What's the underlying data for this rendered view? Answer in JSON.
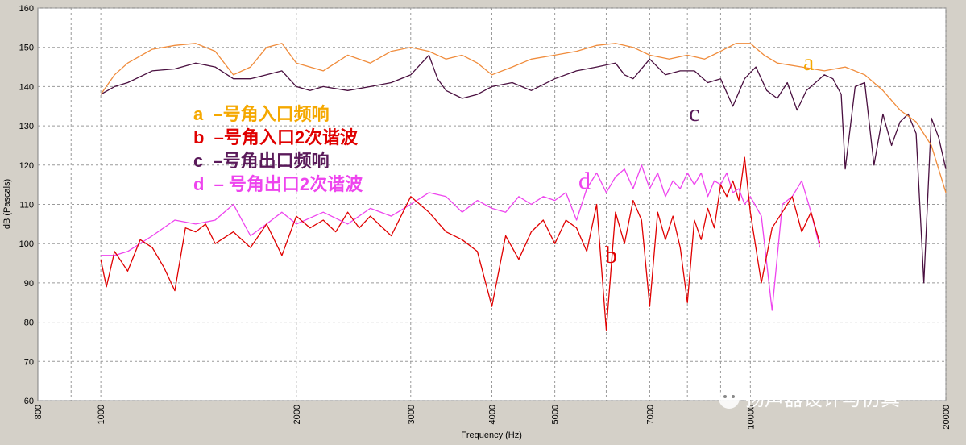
{
  "chart_data": {
    "type": "line",
    "title": "",
    "xlabel": "Frequency (Hz)",
    "ylabel": "dB (Pascals)",
    "xscale": "log",
    "xlim": [
      800,
      20000
    ],
    "ylim": [
      60,
      160
    ],
    "grid": true,
    "x_ticks": [
      "800",
      "1000",
      "2000",
      "3000",
      "4000",
      "5000",
      "7000",
      "10000",
      "20000"
    ],
    "y_ticks": [
      "60",
      "70",
      "80",
      "90",
      "100",
      "110",
      "120",
      "130",
      "140",
      "150",
      "160"
    ],
    "legend": {
      "placement": "top-left",
      "entries": [
        {
          "letter": "a",
          "text": "–号角入口频响",
          "color": "#f5a800"
        },
        {
          "letter": "b",
          "text": "–号角入口2次谐波",
          "color": "#e00000"
        },
        {
          "letter": "c",
          "text": "–号角出口频响",
          "color": "#5a1a5a"
        },
        {
          "letter": "d",
          "text": "– 号角出口2次谐波",
          "color": "#ee44ee"
        }
      ]
    },
    "series": [
      {
        "name": "a",
        "color": "#f08c3c",
        "x": [
          1000,
          1050,
          1100,
          1200,
          1300,
          1400,
          1500,
          1600,
          1700,
          1800,
          1900,
          2000,
          2200,
          2400,
          2600,
          2800,
          3000,
          3200,
          3400,
          3600,
          3800,
          4000,
          4300,
          4600,
          5000,
          5400,
          5800,
          6200,
          6600,
          7000,
          7500,
          8000,
          8500,
          9000,
          9500,
          10000,
          10500,
          11000,
          12000,
          13000,
          14000,
          15000,
          16000,
          17000,
          18000,
          19000,
          20000
        ],
        "y": [
          138,
          143,
          146,
          149.5,
          150.5,
          151,
          149,
          143,
          145,
          150,
          151,
          146,
          144,
          148,
          146,
          149,
          150,
          149,
          147,
          148,
          146,
          143,
          145,
          147,
          148,
          149,
          150.5,
          151,
          150,
          148,
          147,
          148,
          147,
          149,
          151,
          151,
          148,
          146,
          145,
          144,
          145,
          143,
          139,
          134,
          131,
          125,
          113
        ]
      },
      {
        "name": "b",
        "color": "#e00000",
        "x": [
          1000,
          1020,
          1050,
          1100,
          1150,
          1200,
          1250,
          1300,
          1350,
          1400,
          1450,
          1500,
          1600,
          1700,
          1800,
          1900,
          2000,
          2100,
          2200,
          2300,
          2400,
          2500,
          2600,
          2800,
          3000,
          3200,
          3400,
          3600,
          3800,
          4000,
          4200,
          4400,
          4600,
          4800,
          5000,
          5200,
          5400,
          5600,
          5800,
          6000,
          6200,
          6400,
          6600,
          6800,
          7000,
          7200,
          7400,
          7600,
          7800,
          8000,
          8200,
          8400,
          8600,
          8800,
          9000,
          9200,
          9400,
          9600,
          9800,
          10000,
          10400,
          10800,
          11200,
          11600,
          12000,
          12400,
          12800
        ],
        "y": [
          96,
          89,
          98,
          93,
          101,
          99,
          94,
          88,
          104,
          103,
          105,
          100,
          103,
          99,
          105,
          97,
          107,
          104,
          106,
          103,
          108,
          104,
          107,
          102,
          112,
          108,
          103,
          101,
          98,
          84,
          102,
          96,
          103,
          106,
          100,
          106,
          104,
          98,
          110,
          78,
          108,
          100,
          111,
          106,
          84,
          108,
          101,
          107,
          99,
          85,
          106,
          101,
          109,
          104,
          115,
          112,
          116,
          111,
          122,
          108,
          90,
          104,
          108,
          112,
          103,
          108,
          100
        ]
      },
      {
        "name": "c",
        "color": "#4a1040",
        "x": [
          1000,
          1050,
          1100,
          1200,
          1300,
          1400,
          1500,
          1600,
          1700,
          1800,
          1900,
          2000,
          2100,
          2200,
          2400,
          2600,
          2800,
          3000,
          3200,
          3300,
          3400,
          3600,
          3800,
          4000,
          4300,
          4600,
          5000,
          5400,
          5800,
          6200,
          6400,
          6600,
          7000,
          7400,
          7800,
          8200,
          8600,
          9000,
          9400,
          9800,
          10200,
          10600,
          11000,
          11400,
          11800,
          12200,
          12600,
          13000,
          13400,
          13800,
          14000,
          14500,
          15000,
          15500,
          16000,
          16500,
          17000,
          17500,
          18000,
          18500,
          19000,
          19500,
          20000
        ],
        "y": [
          138,
          140,
          141,
          144,
          144.5,
          146,
          145,
          142,
          142,
          143,
          144,
          140,
          139,
          140,
          139,
          140,
          141,
          143,
          148,
          142,
          139,
          137,
          138,
          140,
          141,
          139,
          142,
          144,
          145,
          146,
          143,
          142,
          147,
          143,
          144,
          144,
          141,
          142,
          135,
          142,
          145,
          139,
          137,
          141,
          134,
          139,
          141,
          143,
          142,
          138,
          119,
          140,
          141,
          120,
          133,
          125,
          131,
          133,
          128,
          90,
          132,
          127,
          119
        ]
      },
      {
        "name": "d",
        "color": "#ee44ee",
        "x": [
          1000,
          1050,
          1100,
          1200,
          1300,
          1400,
          1500,
          1600,
          1700,
          1800,
          1900,
          2000,
          2200,
          2400,
          2600,
          2800,
          3000,
          3200,
          3400,
          3600,
          3800,
          4000,
          4200,
          4400,
          4600,
          4800,
          5000,
          5200,
          5400,
          5600,
          5800,
          6000,
          6200,
          6400,
          6600,
          6800,
          7000,
          7200,
          7400,
          7600,
          7800,
          8000,
          8200,
          8400,
          8600,
          8800,
          9000,
          9200,
          9400,
          9600,
          9800,
          10000,
          10400,
          10800,
          11200,
          11600,
          12000,
          12400,
          12800
        ],
        "y": [
          97,
          97,
          98,
          102,
          106,
          105,
          106,
          110,
          102,
          105,
          108,
          105,
          108,
          105,
          109,
          107,
          110,
          113,
          112,
          108,
          111,
          109,
          108,
          112,
          110,
          112,
          111,
          113,
          106,
          114,
          118,
          113,
          117,
          119,
          114,
          120,
          114,
          118,
          112,
          116,
          114,
          118,
          115,
          118,
          112,
          116,
          115,
          118,
          113,
          114,
          110,
          112,
          107,
          83,
          110,
          112,
          116,
          108,
          99
        ]
      }
    ],
    "annotations": [
      "a",
      "b",
      "c",
      "d"
    ]
  },
  "header": {
    "title": ""
  },
  "watermark": {
    "text": "扬声器设计与仿真"
  }
}
